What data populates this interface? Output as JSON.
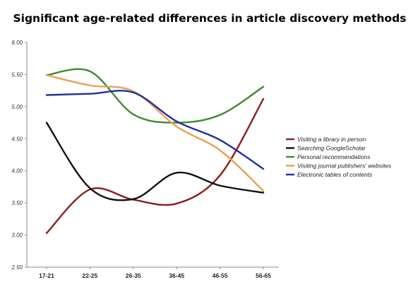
{
  "chart_data": {
    "type": "line",
    "title": "Significant age-related differences in article discovery methods",
    "xlabel": "",
    "ylabel": "",
    "categories": [
      "17-21",
      "22-25",
      "26-35",
      "36-45",
      "46-55",
      "56-65"
    ],
    "ylim": [
      2.5,
      6.0
    ],
    "yticks": [
      "2.50",
      "3.00",
      "3.50",
      "4.00",
      "4.50",
      "5.00",
      "5.50",
      "6.00"
    ],
    "grid": false,
    "legend_position": "right",
    "series": [
      {
        "name": "Visiting a library in person",
        "color": "#8b1e1e",
        "values": [
          3.03,
          3.71,
          3.55,
          3.49,
          3.93,
          5.12
        ]
      },
      {
        "name": "Searching GoogleScholar",
        "color": "#111111",
        "values": [
          4.75,
          3.73,
          3.56,
          3.97,
          3.77,
          3.66
        ]
      },
      {
        "name": "Personal recommendations",
        "color": "#3f8a2e",
        "values": [
          5.49,
          5.55,
          4.88,
          4.75,
          4.87,
          5.31
        ]
      },
      {
        "name": "Visiting journal publishers' websites",
        "color": "#e8a055",
        "values": [
          5.49,
          5.33,
          5.24,
          4.69,
          4.32,
          3.69
        ]
      },
      {
        "name": "Electronic tables of contents",
        "color": "#1f2f9c",
        "values": [
          5.18,
          5.2,
          5.22,
          4.77,
          4.48,
          4.03
        ]
      }
    ]
  }
}
